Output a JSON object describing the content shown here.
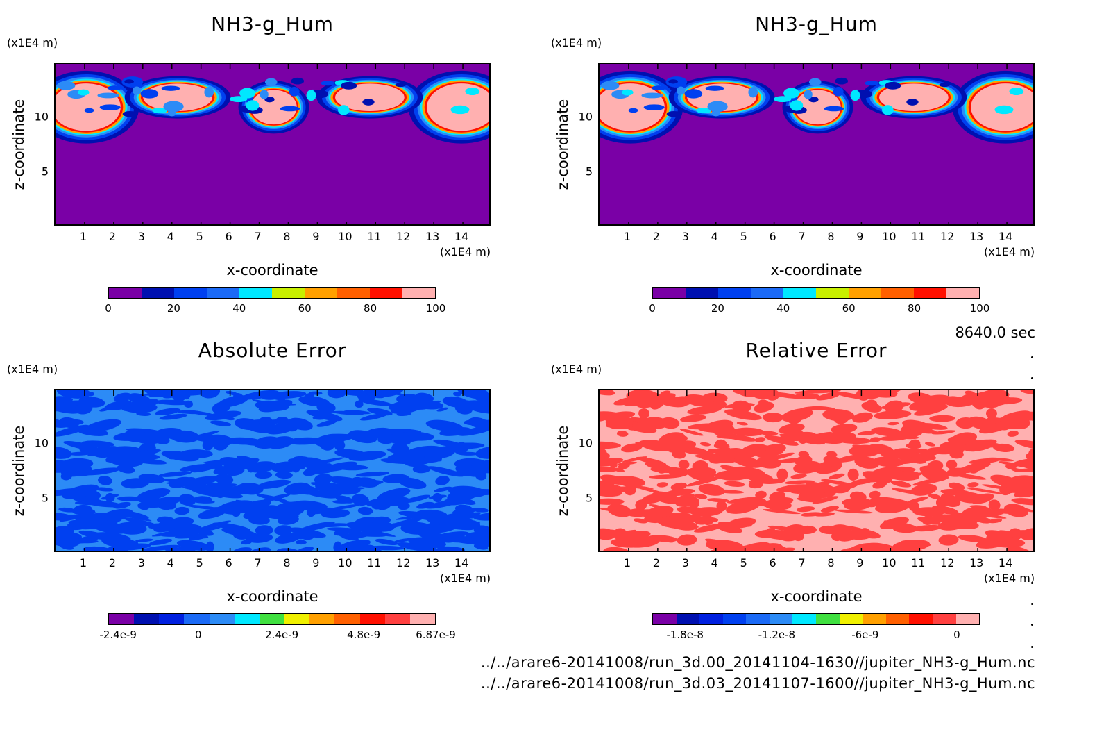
{
  "time_label": "8640.0 sec",
  "files": [
    "../../arare6-20141008/run_3d.00_20141104-1630//jupiter_NH3-g_Hum.nc",
    "../../arare6-20141008/run_3d.03_20141107-1600//jupiter_NH3-g_Hum.nc"
  ],
  "colors": {
    "purple": "#7a00a6",
    "navy": "#0010b0",
    "blue": "#0040f0",
    "mid_blue": "#1b6af6",
    "sky": "#2c8bf6",
    "cyan": "#00e8ff",
    "green": "#40e040",
    "yellow": "#f0f000",
    "orange": "#ffa000",
    "dark_orange": "#ff6000",
    "red": "#ff1000",
    "light_red": "#ff4040",
    "pink": "#ffb0b0"
  },
  "chart_data": [
    {
      "type": "heatmap",
      "title": "NH3-g_Hum",
      "xlabel": "x-coordinate",
      "ylabel": "z-coordinate",
      "x_unit": "(x1E4 m)",
      "y_unit": "(x1E4 m)",
      "xlim": [
        0,
        15
      ],
      "ylim": [
        0,
        15
      ],
      "x_ticks": [
        "1",
        "2",
        "3",
        "4",
        "5",
        "6",
        "7",
        "8",
        "9",
        "10",
        "11",
        "12",
        "13",
        "14"
      ],
      "y_ticks": [
        "5",
        "10"
      ],
      "colorbar": {
        "colors": [
          "#7a00a6",
          "#0010b0",
          "#0040f0",
          "#1b6af6",
          "#00e8ff",
          "#c8f000",
          "#ffa000",
          "#ff6000",
          "#ff1000",
          "#ffb0b0"
        ],
        "tick_labels": [
          "0",
          "20",
          "40",
          "60",
          "80",
          "100"
        ]
      },
      "description_values": {
        "background": 0,
        "cloud_band_z": [
          9,
          13
        ],
        "max": 100
      }
    },
    {
      "type": "heatmap",
      "title": "NH3-g_Hum",
      "xlabel": "x-coordinate",
      "ylabel": "z-coordinate",
      "x_unit": "(x1E4 m)",
      "y_unit": "(x1E4 m)",
      "xlim": [
        0,
        15
      ],
      "ylim": [
        0,
        15
      ],
      "x_ticks": [
        "1",
        "2",
        "3",
        "4",
        "5",
        "6",
        "7",
        "8",
        "9",
        "10",
        "11",
        "12",
        "13",
        "14"
      ],
      "y_ticks": [
        "5",
        "10"
      ],
      "colorbar": {
        "colors": [
          "#7a00a6",
          "#0010b0",
          "#0040f0",
          "#1b6af6",
          "#00e8ff",
          "#c8f000",
          "#ffa000",
          "#ff6000",
          "#ff1000",
          "#ffb0b0"
        ],
        "tick_labels": [
          "0",
          "20",
          "40",
          "60",
          "80",
          "100"
        ]
      }
    },
    {
      "type": "heatmap",
      "title": "Absolute Error",
      "xlabel": "x-coordinate",
      "ylabel": "z-coordinate",
      "x_unit": "(x1E4 m)",
      "y_unit": "(x1E4 m)",
      "xlim": [
        0,
        15
      ],
      "ylim": [
        0,
        15
      ],
      "x_ticks": [
        "1",
        "2",
        "3",
        "4",
        "5",
        "6",
        "7",
        "8",
        "9",
        "10",
        "11",
        "12",
        "13",
        "14"
      ],
      "y_ticks": [
        "5",
        "10"
      ],
      "colorbar": {
        "colors": [
          "#7a00a6",
          "#0010b0",
          "#0020e0",
          "#1b6af6",
          "#2c8bf6",
          "#00e8ff",
          "#40e040",
          "#f0f000",
          "#ffa000",
          "#ff6000",
          "#ff1000",
          "#ff4040",
          "#ffb0b0"
        ],
        "tick_labels": [
          "-2.4e-9",
          "0",
          "2.4e-9",
          "4.8e-9",
          "6.87e-9"
        ]
      }
    },
    {
      "type": "heatmap",
      "title": "Relative Error",
      "xlabel": "x-coordinate",
      "ylabel": "z-coordinate",
      "x_unit": "(x1E4 m)",
      "y_unit": "(x1E4 m)",
      "xlim": [
        0,
        15
      ],
      "ylim": [
        0,
        15
      ],
      "x_ticks": [
        "1",
        "2",
        "3",
        "4",
        "5",
        "6",
        "7",
        "8",
        "9",
        "10",
        "11",
        "12",
        "13",
        "14"
      ],
      "y_ticks": [
        "5",
        "10"
      ],
      "colorbar": {
        "colors": [
          "#7a00a6",
          "#0010b0",
          "#0020e0",
          "#0040f0",
          "#1b6af6",
          "#2c8bf6",
          "#00e8ff",
          "#40e040",
          "#f0f000",
          "#ffa000",
          "#ff6000",
          "#ff1000",
          "#ff4040",
          "#ffb0b0"
        ],
        "tick_labels": [
          "-1.8e-8",
          "-1.2e-8",
          "-6e-9",
          "0"
        ]
      }
    }
  ]
}
